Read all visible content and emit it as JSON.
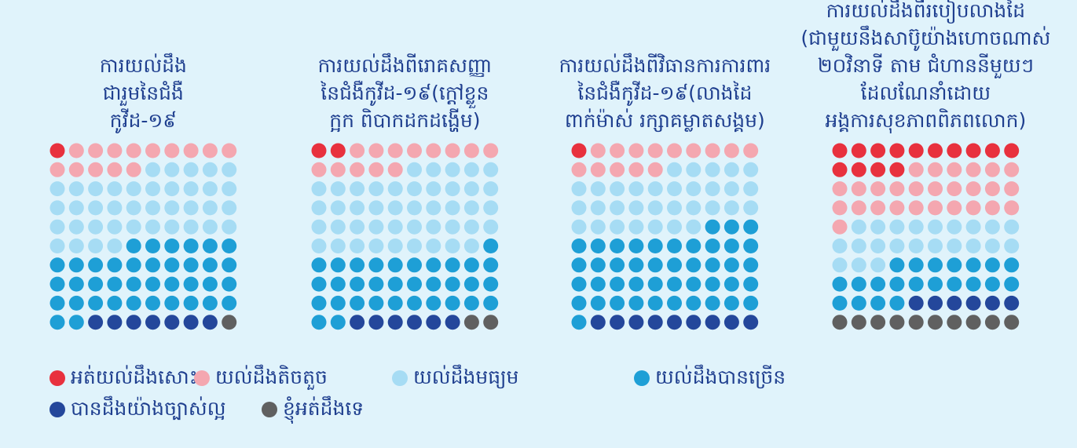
{
  "chart_data": {
    "type": "waffle",
    "categories": [
      [
        "ការយល់ដឹង",
        "ជារួមនៃជំងឺ",
        "កូវីដ-១៩"
      ],
      [
        "ការយល់ដឹងពីរោគសញ្ញា",
        "នៃជំងឺកូវីដ-១៩(ក្តៅខ្លួន",
        "ក្អក ពិបាកដកដង្ហើម)"
      ],
      [
        "ការយល់ដឹងពីវិធានការការពារ",
        "នៃជំងឺកូវីដ-១៩(លាងដៃ",
        "ពាក់ម៉ាស់ រក្សាគម្លាតសង្គម)"
      ],
      [
        "ការយល់ដឹងពីរបៀបលាងដៃ",
        "(ជាមួយនឹងសាប៊ូយ៉ាងហោចណាស់",
        "២០វិនាទី តាម ជំហាននីមួយៗ",
        "ដែលណែនាំដោយ",
        "អង្គការសុខភាពពិភពលោក)"
      ]
    ],
    "series": [
      {
        "name": "អត់យល់ដឹងសោះ",
        "color": "#e8313e",
        "values": [
          1,
          2,
          1,
          14
        ]
      },
      {
        "name": "យល់ដឹងតិចតួច",
        "color": "#f4a7b0",
        "values": [
          14,
          13,
          14,
          27
        ]
      },
      {
        "name": "យល់ដឹងមធ្យម",
        "color": "#a6dcf4",
        "values": [
          39,
          44,
          32,
          22
        ]
      },
      {
        "name": "យល់ដឹងបានច្រើន",
        "color": "#1e9fd6",
        "values": [
          38,
          33,
          44,
          21
        ]
      },
      {
        "name": "បានដឹងយ៉ាងច្បាស់ល្អ",
        "color": "#24479b",
        "values": [
          7,
          6,
          9,
          6
        ]
      },
      {
        "name": "ខ្ញុំអត់ដឹងទេ",
        "color": "#606060",
        "values": [
          1,
          2,
          0,
          10
        ]
      }
    ]
  }
}
